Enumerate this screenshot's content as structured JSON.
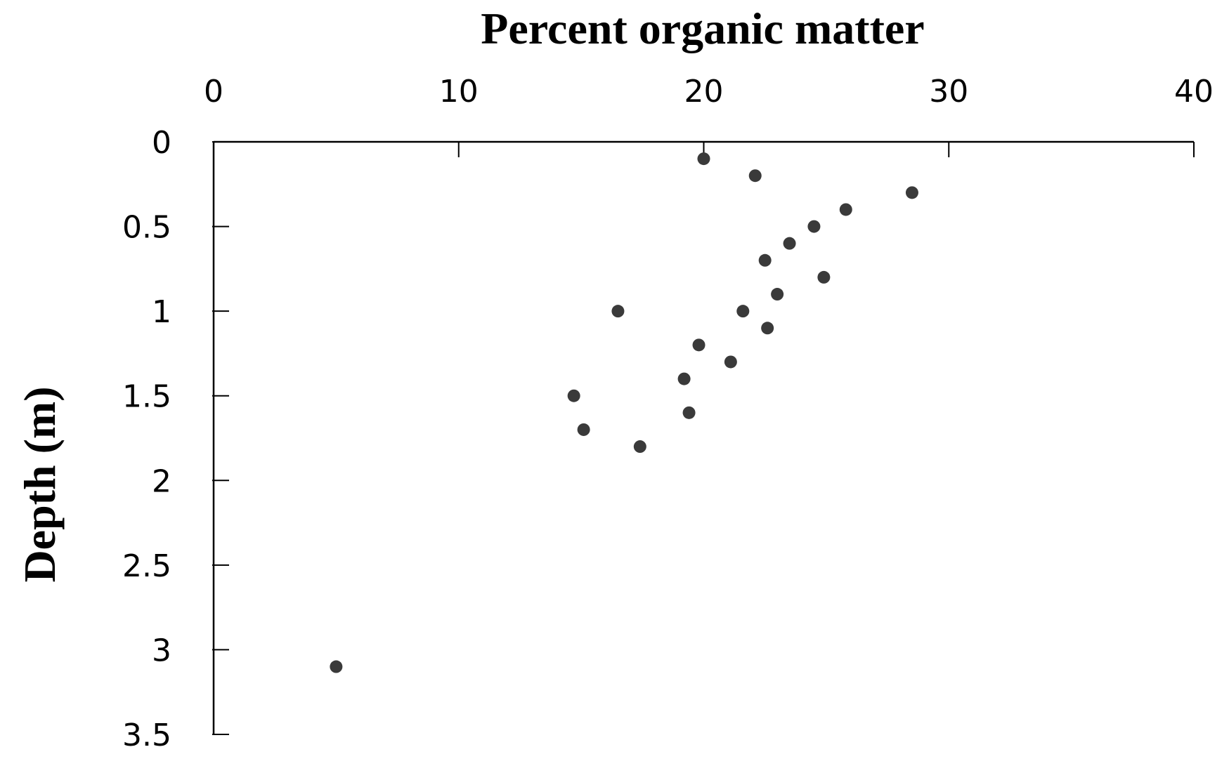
{
  "chart_data": {
    "type": "scatter",
    "xlabel": "Percent organic matter",
    "ylabel": "Depth (m)",
    "xlim": [
      0,
      40
    ],
    "ylim": [
      0,
      3.5
    ],
    "x_axis_position": "top",
    "y_axis_inverted": true,
    "x_ticks": [
      "0",
      "10",
      "20",
      "30",
      "40"
    ],
    "y_ticks": [
      "0",
      "0.5",
      "1",
      "1.5",
      "2",
      "2.5",
      "3",
      "3.5"
    ],
    "grid": false,
    "marker_color": "#3a3a3a",
    "points": [
      {
        "x": 20.0,
        "y": 0.1
      },
      {
        "x": 22.1,
        "y": 0.2
      },
      {
        "x": 28.5,
        "y": 0.3
      },
      {
        "x": 25.8,
        "y": 0.4
      },
      {
        "x": 24.5,
        "y": 0.5
      },
      {
        "x": 23.5,
        "y": 0.6
      },
      {
        "x": 22.5,
        "y": 0.7
      },
      {
        "x": 24.9,
        "y": 0.8
      },
      {
        "x": 23.0,
        "y": 0.9
      },
      {
        "x": 16.5,
        "y": 1.0
      },
      {
        "x": 21.6,
        "y": 1.0
      },
      {
        "x": 22.6,
        "y": 1.1
      },
      {
        "x": 19.8,
        "y": 1.2
      },
      {
        "x": 21.1,
        "y": 1.3
      },
      {
        "x": 19.2,
        "y": 1.4
      },
      {
        "x": 14.7,
        "y": 1.5
      },
      {
        "x": 19.4,
        "y": 1.6
      },
      {
        "x": 15.1,
        "y": 1.7
      },
      {
        "x": 17.4,
        "y": 1.8
      },
      {
        "x": 5.0,
        "y": 3.1
      }
    ]
  }
}
